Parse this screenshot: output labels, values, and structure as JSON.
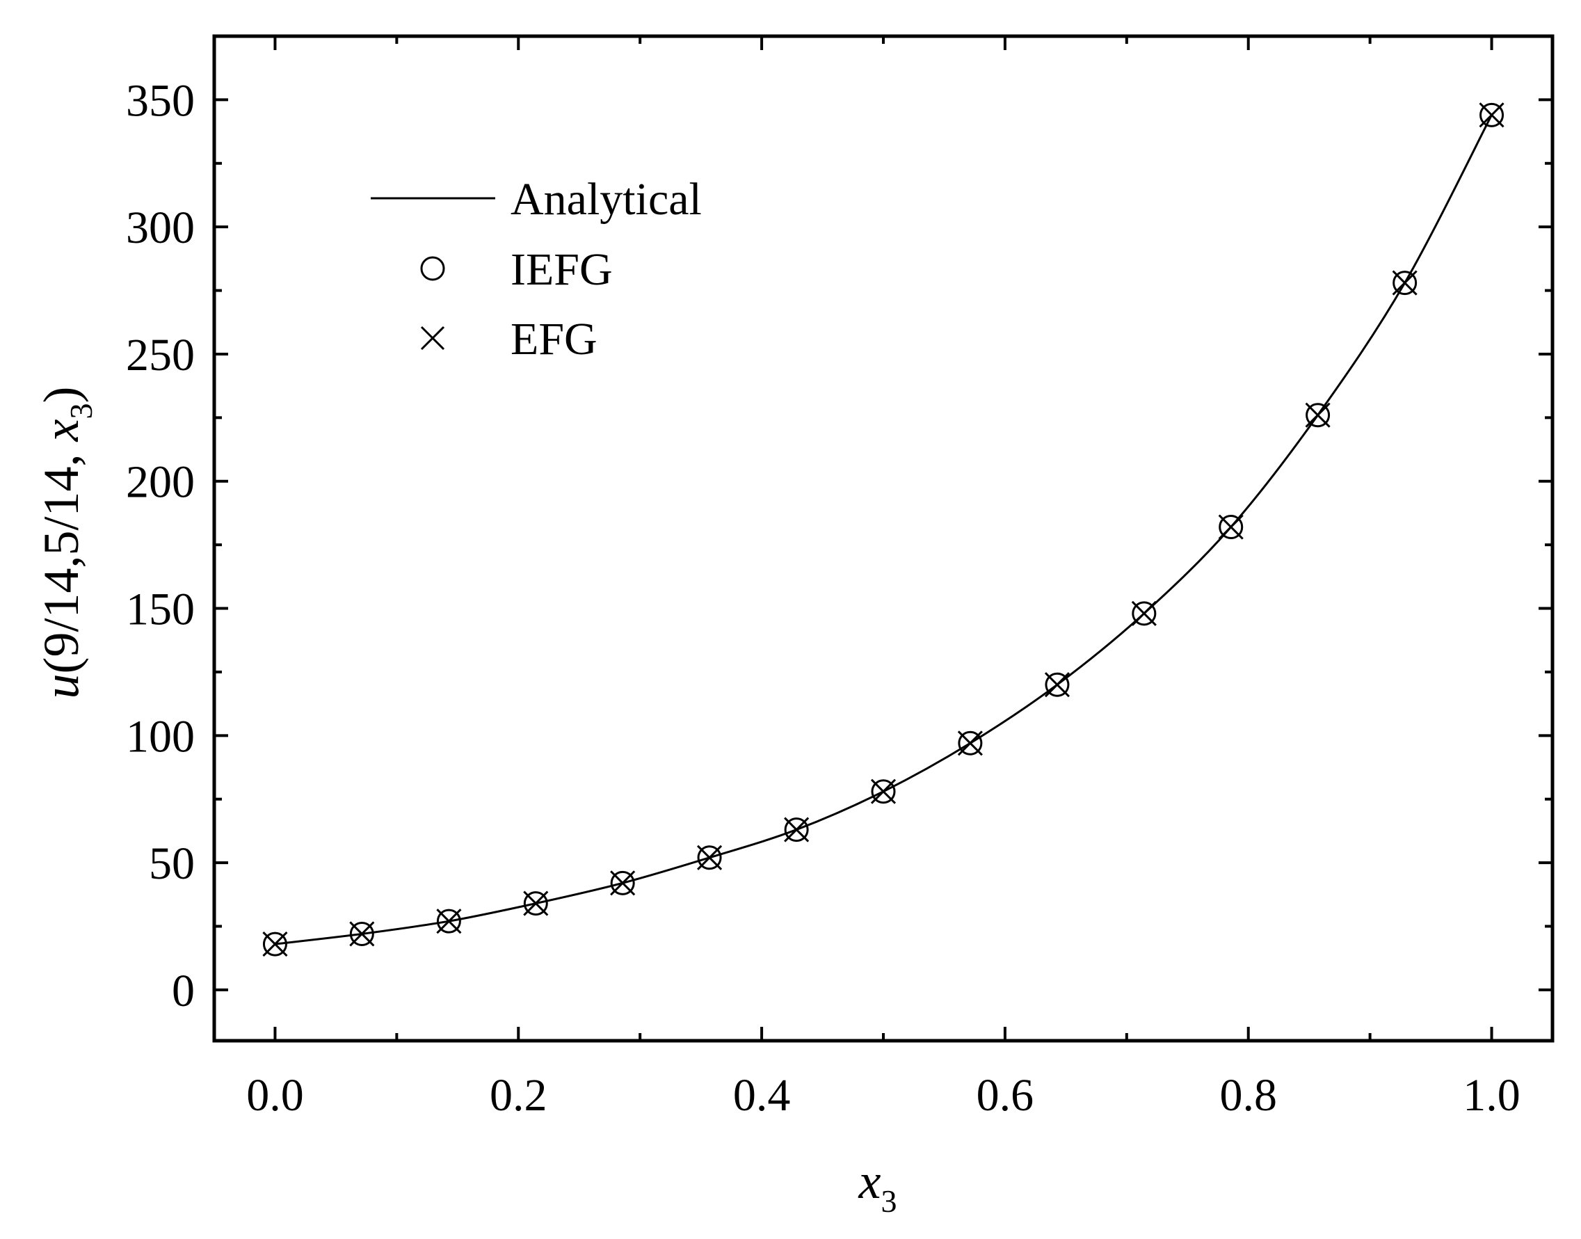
{
  "chart_data": {
    "type": "line",
    "title": "",
    "xlabel": {
      "main": "x",
      "sub": "3"
    },
    "ylabel": {
      "prefix": "u",
      "args": "(9/14,5/14, ",
      "var": "x",
      "sub": "3",
      "close": ")"
    },
    "xlim": [
      -0.05,
      1.05
    ],
    "ylim": [
      -20,
      375
    ],
    "xticks": [
      0.0,
      0.2,
      0.4,
      0.6,
      0.8,
      1.0
    ],
    "xtick_labels": [
      "0.0",
      "0.2",
      "0.4",
      "0.6",
      "0.8",
      "1.0"
    ],
    "yticks": [
      0,
      50,
      100,
      150,
      200,
      250,
      300,
      350
    ],
    "ytick_labels": [
      "0",
      "50",
      "100",
      "150",
      "200",
      "250",
      "300",
      "350"
    ],
    "legend_position": "top-left",
    "series": [
      {
        "name": "Analytical",
        "marker": "line",
        "x": [
          0.0,
          0.0714,
          0.1429,
          0.2143,
          0.2857,
          0.3571,
          0.4286,
          0.5,
          0.5714,
          0.6429,
          0.7143,
          0.7857,
          0.8571,
          0.9286,
          1.0
        ],
        "y": [
          18,
          22,
          27,
          34,
          42,
          52,
          63,
          78,
          97,
          120,
          148,
          182,
          226,
          278,
          344
        ]
      },
      {
        "name": "IEFG",
        "marker": "circle",
        "x": [
          0.0,
          0.0714,
          0.1429,
          0.2143,
          0.2857,
          0.3571,
          0.4286,
          0.5,
          0.5714,
          0.6429,
          0.7143,
          0.7857,
          0.8571,
          0.9286,
          1.0
        ],
        "y": [
          18,
          22,
          27,
          34,
          42,
          52,
          63,
          78,
          97,
          120,
          148,
          182,
          226,
          278,
          344
        ]
      },
      {
        "name": "EFG",
        "marker": "cross",
        "x": [
          0.0,
          0.0714,
          0.1429,
          0.2143,
          0.2857,
          0.3571,
          0.4286,
          0.5,
          0.5714,
          0.6429,
          0.7143,
          0.7857,
          0.8571,
          0.9286,
          1.0
        ],
        "y": [
          18,
          22,
          27,
          34,
          42,
          52,
          63,
          78,
          97,
          120,
          148,
          182,
          226,
          278,
          344
        ]
      }
    ]
  }
}
